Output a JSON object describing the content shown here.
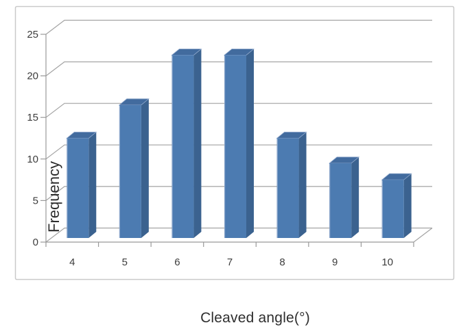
{
  "chart_data": {
    "type": "bar",
    "style": "3d-column",
    "title": "",
    "xlabel": "Cleaved angle(°)",
    "ylabel": "Frequency",
    "categories": [
      "4",
      "5",
      "6",
      "7",
      "8",
      "9",
      "10"
    ],
    "values": [
      12,
      16,
      22,
      22,
      12,
      9,
      7
    ],
    "ylim": [
      0,
      25
    ],
    "yticks": [
      0,
      5,
      10,
      15,
      20,
      25
    ],
    "grid": true,
    "legend": false,
    "colors": {
      "bar_front": "#4c7bb1",
      "bar_side": "#3b628f",
      "bar_top": "#426b9e",
      "bar_edge_light": "#93abce",
      "gridline": "#a3a3a3",
      "axis_line": "#999999",
      "tick_text": "#3c3c3c",
      "frame_border": "#c9c9c9",
      "plot_background": "#ffffff"
    }
  }
}
